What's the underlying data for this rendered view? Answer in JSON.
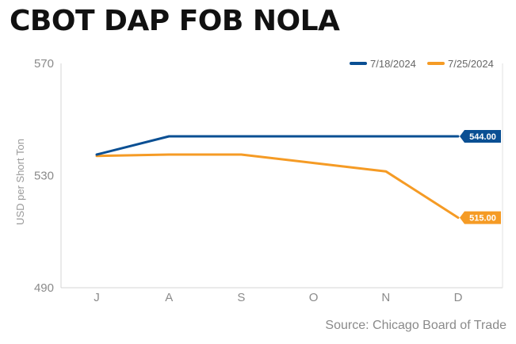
{
  "chart_data": {
    "type": "line",
    "title": "CBOT DAP FOB NOLA",
    "ylabel": "USD per Short Ton",
    "xlabel": "",
    "categories": [
      "J",
      "A",
      "S",
      "O",
      "N",
      "D"
    ],
    "ylim": [
      490,
      570
    ],
    "yticks": [
      490,
      530,
      570
    ],
    "grid": false,
    "legend_position": "top-right",
    "series": [
      {
        "name": "7/18/2024",
        "color": "#0a4f93",
        "values": [
          537.5,
          544,
          544,
          544,
          544,
          544
        ],
        "end_label": "544.00"
      },
      {
        "name": "7/25/2024",
        "color": "#f59b25",
        "values": [
          537,
          537.5,
          537.5,
          534.5,
          531.5,
          515
        ],
        "end_label": "515.00"
      }
    ]
  },
  "source": "Source: Chicago Board of Trade"
}
